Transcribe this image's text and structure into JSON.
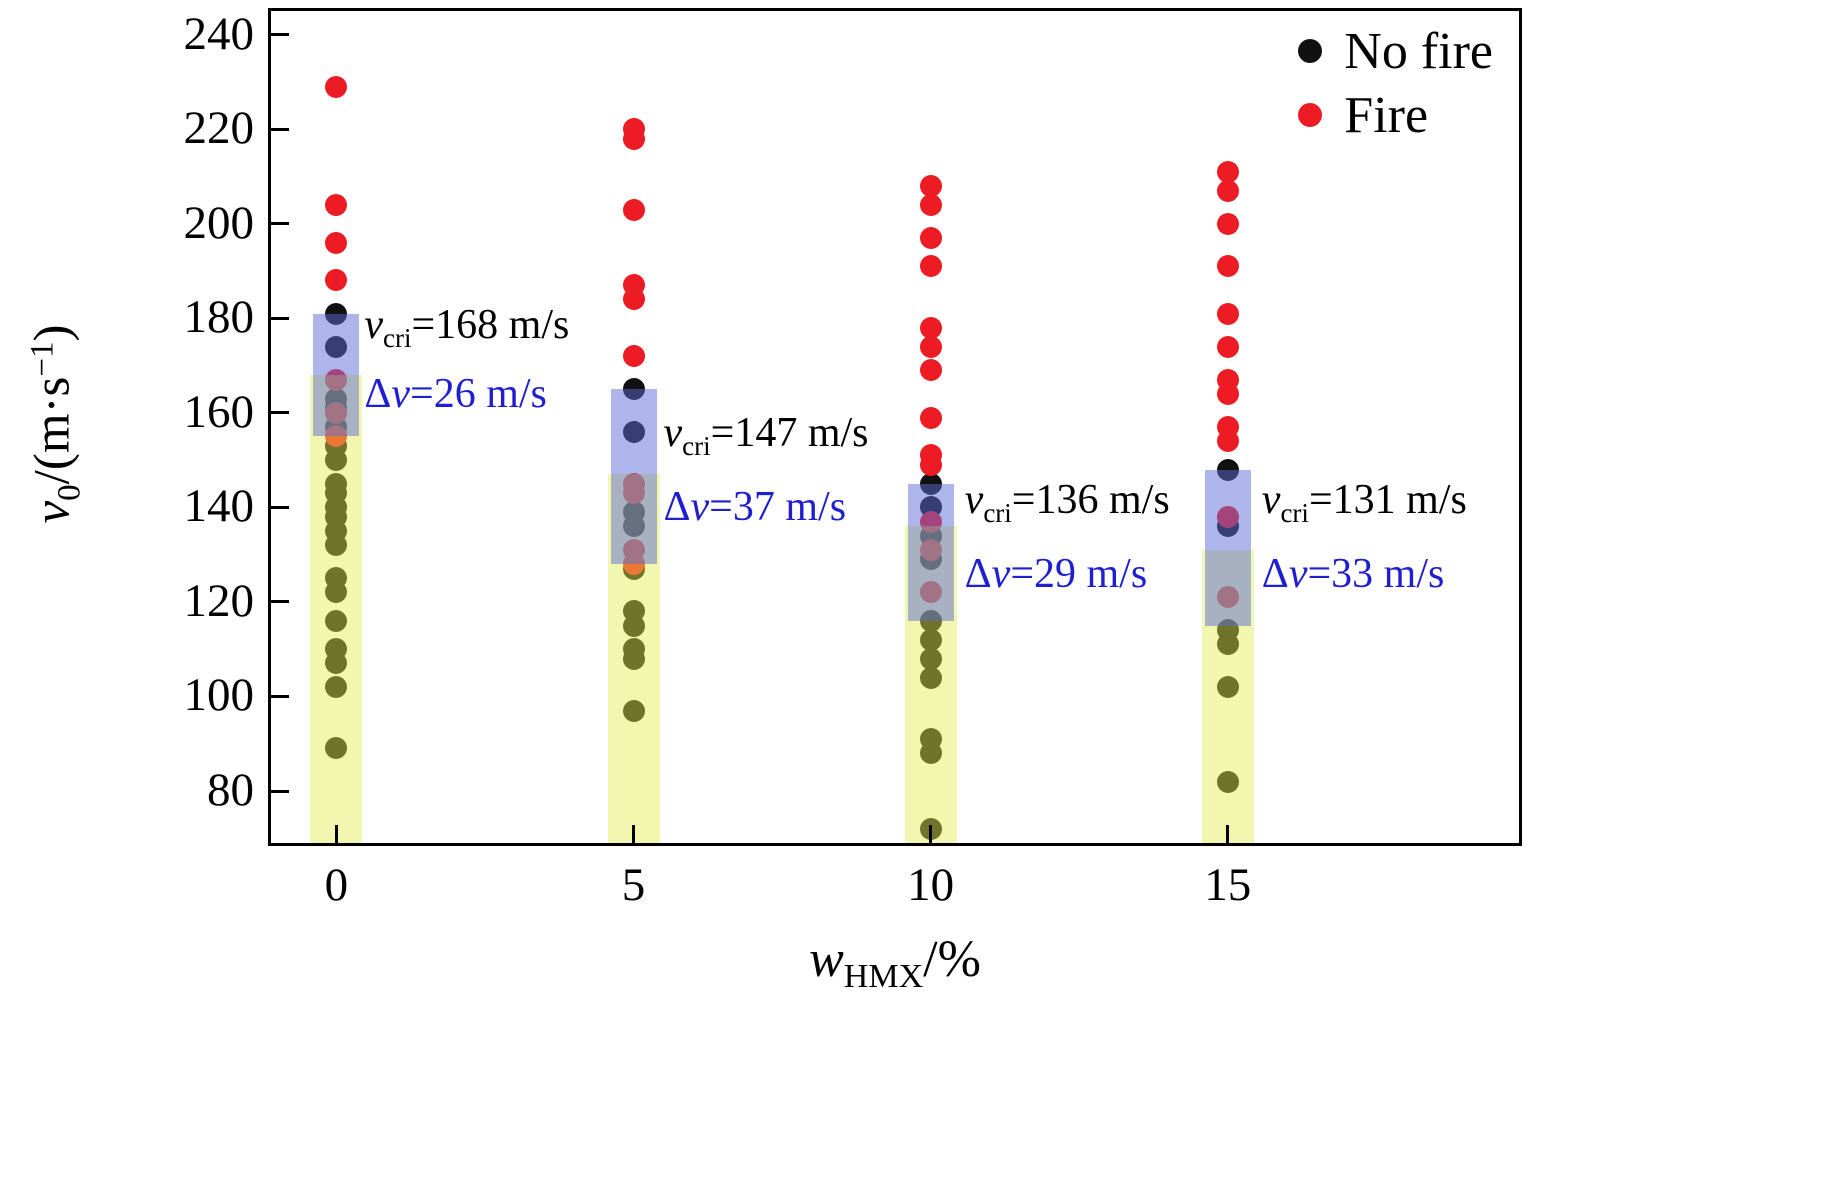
{
  "chart_data": {
    "type": "scatter",
    "xlabel_parts": {
      "var": "w",
      "sub": "HMX",
      "suffix": "/%"
    },
    "ylabel_parts": {
      "var": "v",
      "sub": "0",
      "mid": "/(m·s",
      "sup": "−1",
      "end": ")"
    },
    "xlim": [
      -1.1,
      19.9
    ],
    "ylim": [
      69,
      245
    ],
    "xticks": [
      "0",
      "5",
      "10",
      "15"
    ],
    "xtick_values": [
      0,
      5,
      10,
      15
    ],
    "yticks": [
      "80",
      "100",
      "120",
      "140",
      "160",
      "180",
      "200",
      "220",
      "240"
    ],
    "ytick_values": [
      80,
      100,
      120,
      140,
      160,
      180,
      200,
      220,
      240
    ],
    "grid": false,
    "legend": {
      "position": "top-right-inside",
      "entries": [
        {
          "label": "No fire",
          "color": "#111111"
        },
        {
          "label": "Fire",
          "color": "#ed1b23"
        }
      ]
    },
    "colors": {
      "no_fire": "#111111",
      "fire": "#ed1b23",
      "band_yellow": "rgba(228,235,75,0.45)",
      "band_blue": "rgba(92,108,214,0.50)",
      "annotation_blue": "#1f1fcf",
      "axis": "#000000"
    },
    "annotation_format": {
      "vcri_var": "v",
      "vcri_sub": "cri",
      "dv_prefix": "Δ",
      "dv_var": "v"
    },
    "groups": [
      {
        "x": 0,
        "v_cri": 168,
        "delta_v": 26,
        "fire": [
          229,
          204,
          196,
          188,
          167,
          160,
          155
        ],
        "no_fire": [
          181,
          174,
          163,
          161,
          157,
          153,
          150,
          145,
          143,
          140,
          138,
          135,
          132,
          125,
          122,
          116,
          110,
          107,
          102,
          89
        ],
        "labels": {
          "vcri": "=168 m/s",
          "dv": "=26 m/s"
        },
        "label_pos": {
          "dx": 28,
          "vcri_v": 178,
          "dv_v": 164
        }
      },
      {
        "x": 5,
        "v_cri": 147,
        "delta_v": 37,
        "fire": [
          220,
          218,
          203,
          187,
          184,
          172,
          145,
          143,
          131,
          128
        ],
        "no_fire": [
          165,
          156,
          139,
          136,
          127,
          118,
          115,
          110,
          108,
          97
        ],
        "labels": {
          "vcri": "=147 m/s",
          "dv": "=37 m/s"
        },
        "label_pos": {
          "dx": 30,
          "vcri_v": 155,
          "dv_v": 140
        }
      },
      {
        "x": 10,
        "v_cri": 136,
        "delta_v": 29,
        "fire": [
          208,
          204,
          197,
          191,
          178,
          174,
          169,
          159,
          151,
          149,
          137,
          131,
          122
        ],
        "no_fire": [
          145,
          140,
          134,
          129,
          116,
          112,
          108,
          104,
          91,
          88,
          72
        ],
        "labels": {
          "vcri": "=136 m/s",
          "dv": "=29 m/s"
        },
        "label_pos": {
          "dx": 34,
          "vcri_v": 141,
          "dv_v": 126
        }
      },
      {
        "x": 15,
        "v_cri": 131,
        "delta_v": 33,
        "fire": [
          211,
          207,
          200,
          191,
          181,
          174,
          167,
          164,
          157,
          154,
          138,
          121
        ],
        "no_fire": [
          148,
          136,
          114,
          111,
          102,
          82
        ],
        "labels": {
          "vcri": "=131 m/s",
          "dv": "=33 m/s"
        },
        "label_pos": {
          "dx": 34,
          "vcri_v": 141,
          "dv_v": 126
        }
      }
    ]
  }
}
